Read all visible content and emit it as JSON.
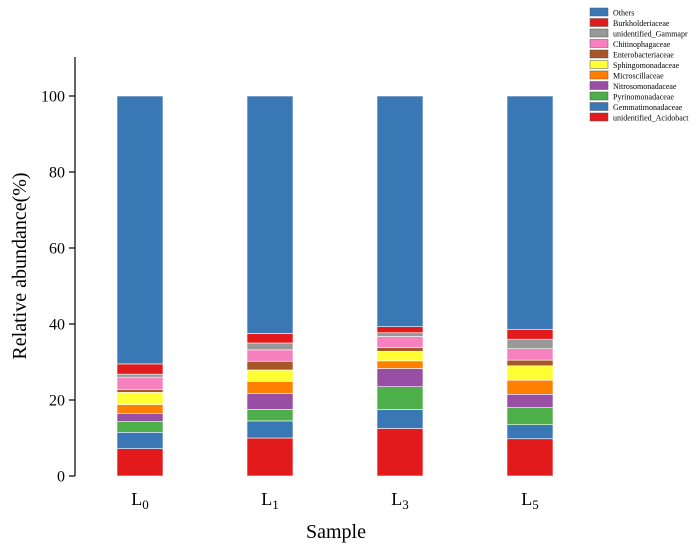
{
  "chart_data": {
    "type": "bar",
    "stacked": true,
    "xlabel": "Sample",
    "ylabel": "Relative abundance(%)",
    "ylim": [
      0,
      100
    ],
    "yticks": [
      0,
      20,
      40,
      60,
      80,
      100
    ],
    "categories": [
      {
        "base": "L",
        "sub": "0"
      },
      {
        "base": "L",
        "sub": "1"
      },
      {
        "base": "L",
        "sub": "3"
      },
      {
        "base": "L",
        "sub": "5"
      }
    ],
    "series": [
      {
        "name": "unidentified_Acidobacteria",
        "color": "#e31a1c",
        "values": [
          7.2,
          10.0,
          12.5,
          9.8
        ]
      },
      {
        "name": "Gemmatimonadaceae",
        "color": "#3a78b5",
        "values": [
          4.3,
          4.5,
          5.0,
          3.7
        ]
      },
      {
        "name": "Pyrinomonadaceae",
        "color": "#4daf4a",
        "values": [
          2.8,
          3.0,
          6.0,
          4.5
        ]
      },
      {
        "name": "Nitrosomonadaceae",
        "color": "#984ea3",
        "values": [
          2.2,
          4.2,
          4.8,
          3.5
        ]
      },
      {
        "name": "Microscillaceae",
        "color": "#ff7f00",
        "values": [
          2.3,
          3.2,
          2.0,
          3.7
        ]
      },
      {
        "name": "Sphingomonadaceae",
        "color": "#ffff33",
        "values": [
          3.2,
          3.0,
          2.5,
          3.8
        ]
      },
      {
        "name": "Enterobacteriaceae",
        "color": "#a65628",
        "values": [
          0.8,
          2.3,
          1.0,
          1.5
        ]
      },
      {
        "name": "Chitinophagaceae",
        "color": "#f781bf",
        "values": [
          3.2,
          3.0,
          2.9,
          3.0
        ]
      },
      {
        "name": "unidentified_Gammaproteobacteria",
        "color": "#999999",
        "values": [
          0.8,
          1.8,
          1.0,
          2.5
        ]
      },
      {
        "name": "Burkholderiaceae",
        "color": "#e31a1c",
        "values": [
          2.7,
          2.5,
          1.6,
          2.6
        ]
      },
      {
        "name": "Others",
        "color": "#3a78b5",
        "values": [
          70.5,
          62.5,
          60.7,
          61.4
        ]
      }
    ],
    "legend": {
      "placement": "top-right",
      "entries": [
        "Others",
        "Burkholderiaceae",
        "unidentified_Gammapr",
        "Chitinophagaceae",
        "Enterobacteriaceae",
        "Sphingomonadaceae",
        "Microscillaceae",
        "Nitrosomonadaceae",
        "Pyrinomonadaceae",
        "Gemmatimonadaceae",
        "unidentified_Acidobact"
      ]
    }
  }
}
